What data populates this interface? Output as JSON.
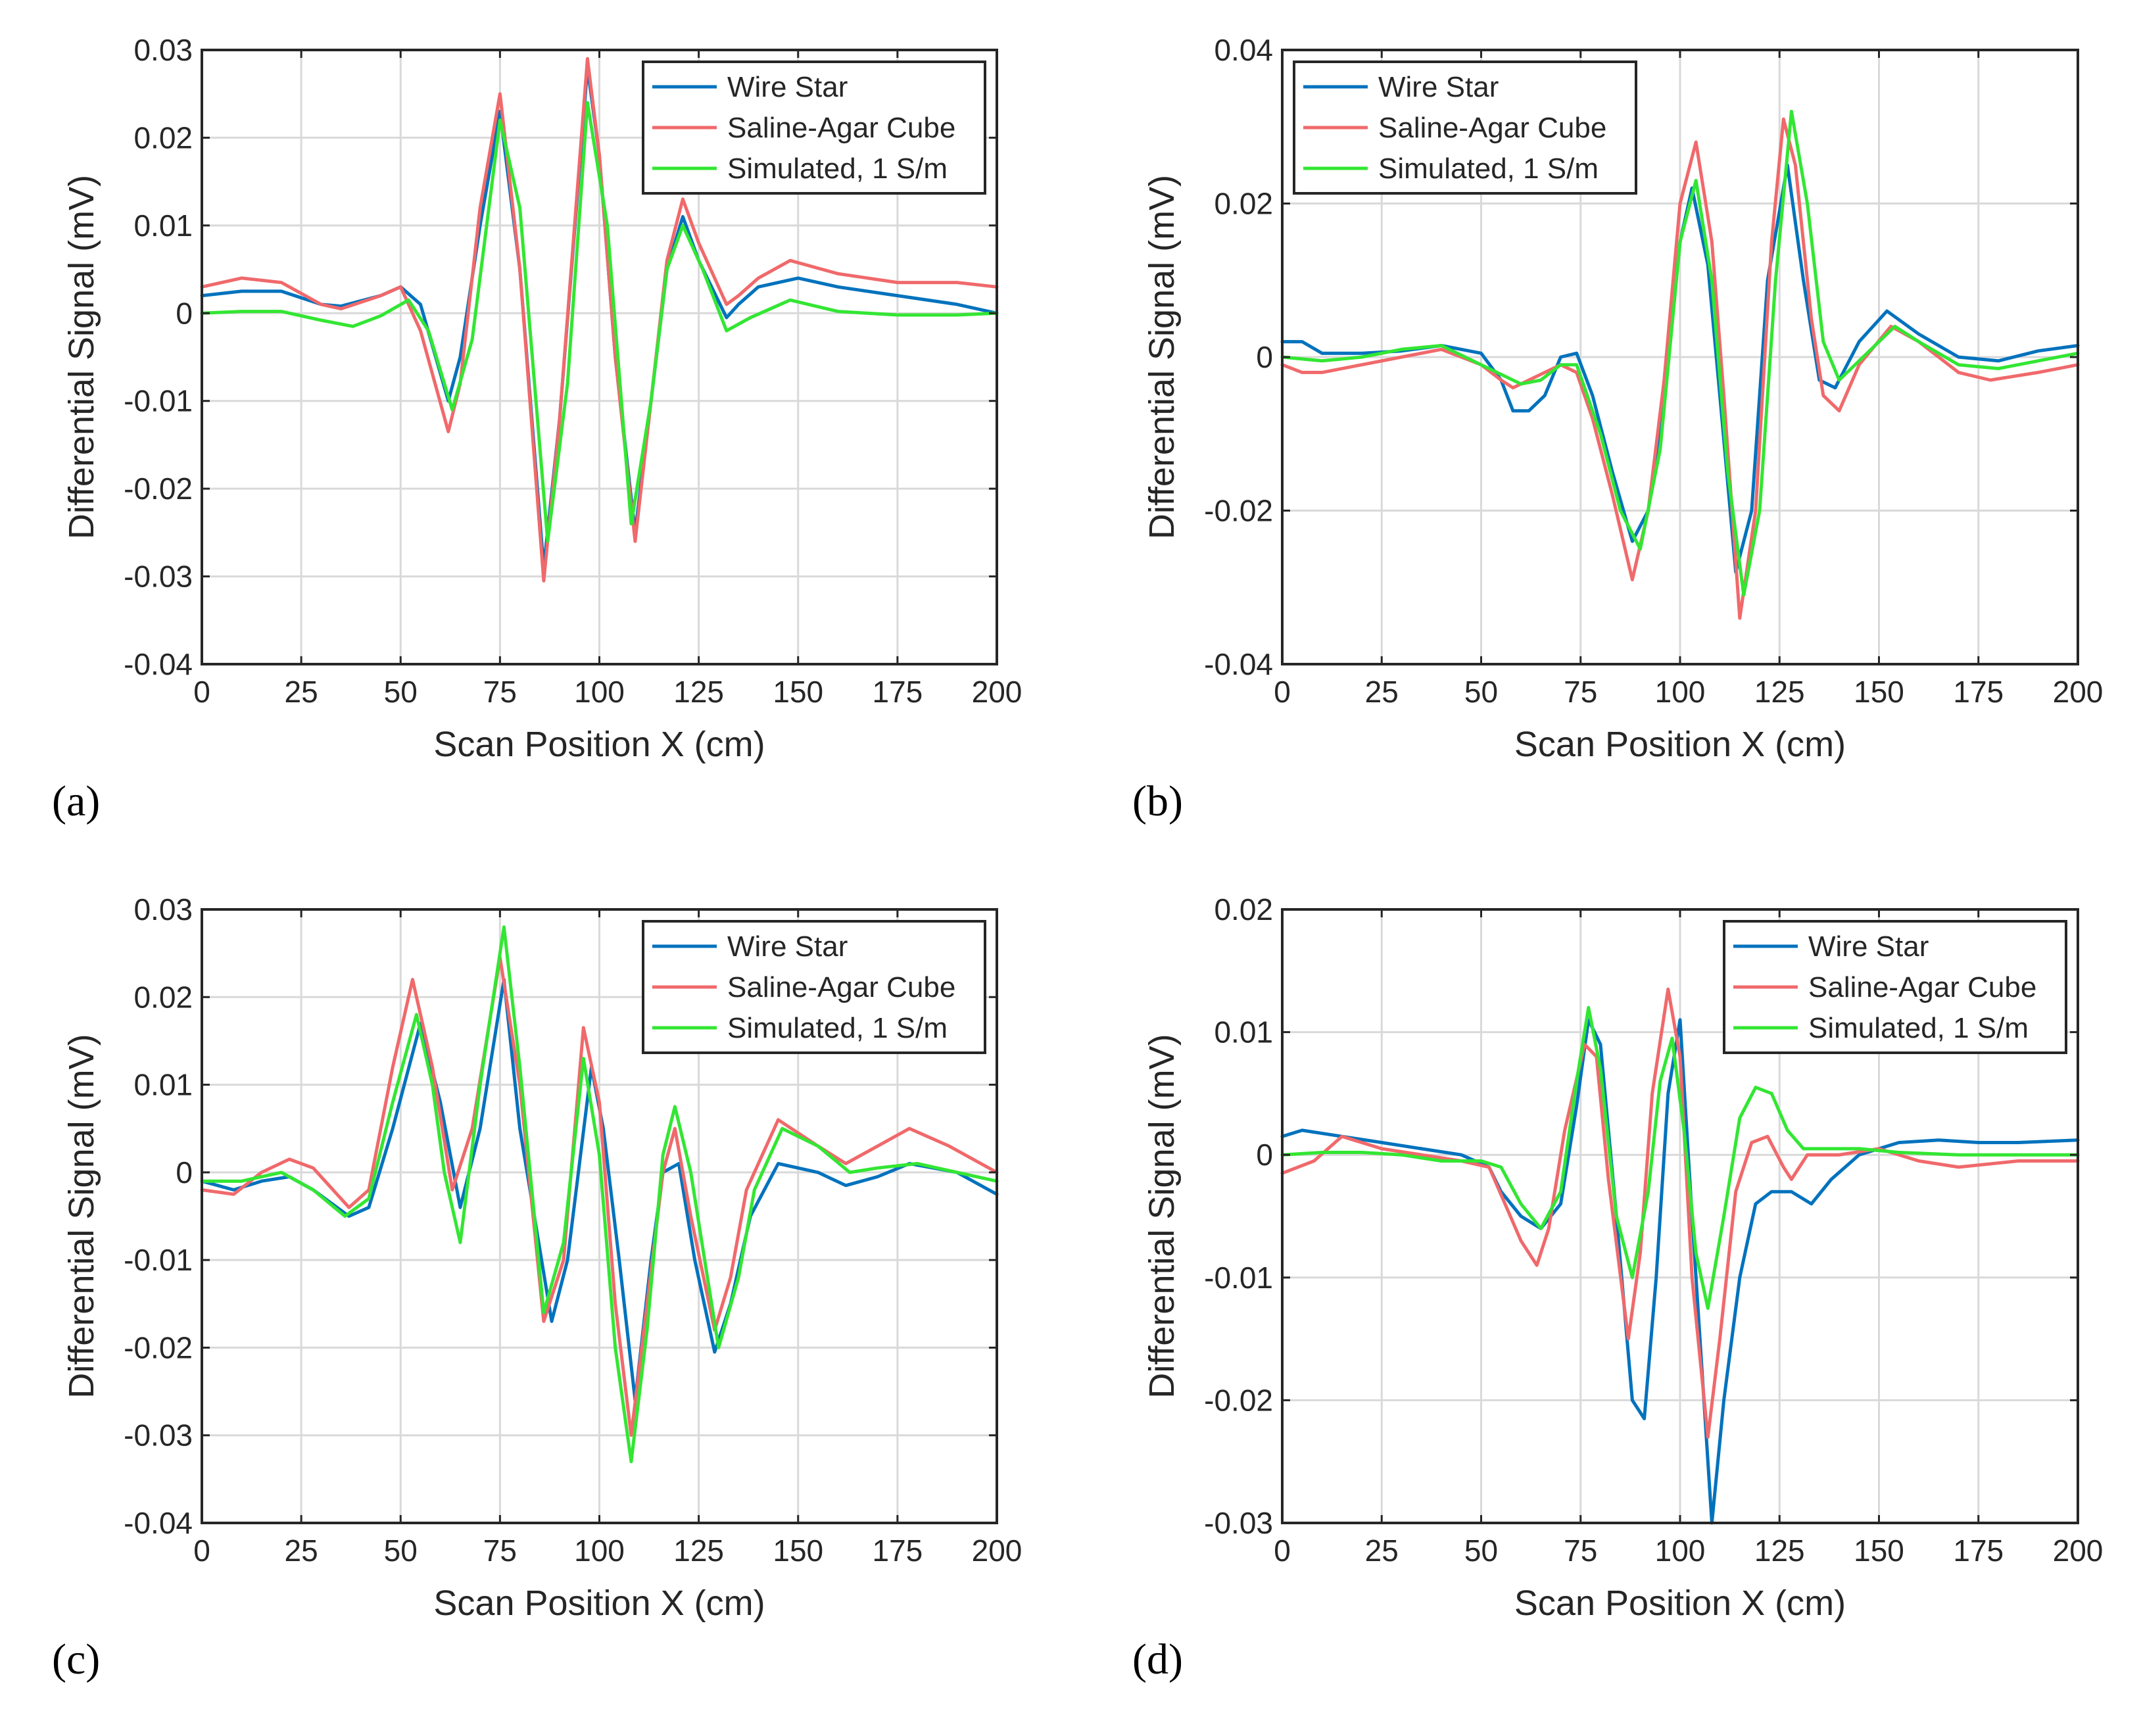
{
  "figure": {
    "legend_entries": [
      "Wire Star",
      "Saline-Agar Cube",
      "Simulated, 1 S/m"
    ],
    "series_colors": [
      "#0072BD",
      "#F0696B",
      "#33E633"
    ]
  },
  "chart_data": [
    {
      "type": "line",
      "panel": "(a)",
      "xlabel": "Scan Position X (cm)",
      "ylabel": "Differential Signal (mV)",
      "xlim": [
        0,
        200
      ],
      "ylim": [
        -0.04,
        0.03
      ],
      "xticks": [
        0,
        25,
        50,
        75,
        100,
        125,
        150,
        175,
        200
      ],
      "yticks": [
        -0.04,
        -0.03,
        -0.02,
        -0.01,
        0,
        0.01,
        0.02,
        0.03
      ],
      "xtick_labels": [
        "0",
        "25",
        "50",
        "75",
        "100",
        "125",
        "150",
        "175",
        "200"
      ],
      "ytick_labels": [
        "-0.04",
        "-0.03",
        "-0.02",
        "-0.01",
        "0",
        "0.01",
        "0.02",
        "0.03"
      ],
      "grid": true,
      "legend": "top-right",
      "series": [
        {
          "name": "Wire Star",
          "color": "#0072BD",
          "x": [
            0,
            10,
            20,
            30,
            35,
            45,
            50,
            55,
            62,
            65,
            70,
            75,
            80,
            86,
            90,
            97,
            100,
            104,
            109,
            113,
            117,
            121,
            125,
            132,
            135,
            140,
            150,
            160,
            175,
            190,
            200
          ],
          "y": [
            0.002,
            0.0025,
            0.0025,
            0.001,
            0.0008,
            0.002,
            0.003,
            0.001,
            -0.01,
            -0.005,
            0.01,
            0.023,
            0.005,
            -0.029,
            -0.012,
            0.028,
            0.018,
            -0.005,
            -0.025,
            -0.01,
            0.005,
            0.011,
            0.006,
            -0.0005,
            0.001,
            0.003,
            0.004,
            0.003,
            0.002,
            0.001,
            0
          ]
        },
        {
          "name": "Saline-Agar Cube",
          "color": "#F0696B",
          "x": [
            0,
            10,
            20,
            30,
            35,
            45,
            50,
            55,
            62,
            65,
            70,
            75,
            80,
            86,
            90,
            97,
            100,
            104,
            109,
            113,
            117,
            121,
            125,
            132,
            135,
            140,
            148,
            160,
            175,
            190,
            200
          ],
          "y": [
            0.003,
            0.004,
            0.0035,
            0.001,
            0.0005,
            0.002,
            0.003,
            -0.002,
            -0.0135,
            -0.008,
            0.012,
            0.025,
            0.005,
            -0.0305,
            -0.012,
            0.029,
            0.018,
            -0.005,
            -0.026,
            -0.01,
            0.006,
            0.013,
            0.008,
            0.001,
            0.002,
            0.004,
            0.006,
            0.0045,
            0.0035,
            0.0035,
            0.003
          ]
        },
        {
          "name": "Simulated, 1 S/m",
          "color": "#33E633",
          "x": [
            0,
            10,
            20,
            30,
            38,
            45,
            52,
            57,
            63,
            68,
            75,
            80,
            87,
            92,
            97,
            102,
            108,
            113,
            117,
            121,
            126,
            132,
            138,
            148,
            160,
            175,
            190,
            200
          ],
          "y": [
            0,
            0.0002,
            0.0002,
            -0.0008,
            -0.0015,
            -0.0003,
            0.0015,
            -0.002,
            -0.011,
            -0.003,
            0.022,
            0.012,
            -0.026,
            -0.008,
            0.024,
            0.01,
            -0.024,
            -0.01,
            0.005,
            0.01,
            0.005,
            -0.002,
            -0.0005,
            0.0015,
            0.0002,
            -0.0002,
            -0.0002,
            0
          ]
        }
      ]
    },
    {
      "type": "line",
      "panel": "(b)",
      "xlabel": "Scan Position X (cm)",
      "ylabel": "Differential Signal (mV)",
      "xlim": [
        0,
        200
      ],
      "ylim": [
        -0.04,
        0.04
      ],
      "xticks": [
        0,
        25,
        50,
        75,
        100,
        125,
        150,
        175,
        200
      ],
      "yticks": [
        -0.04,
        -0.02,
        0,
        0.02,
        0.04
      ],
      "xtick_labels": [
        "0",
        "25",
        "50",
        "75",
        "100",
        "125",
        "150",
        "175",
        "200"
      ],
      "ytick_labels": [
        "-0.04",
        "-0.02",
        "0",
        "0.02",
        "0.04"
      ],
      "grid": true,
      "legend": "top-left",
      "series": [
        {
          "name": "Wire Star",
          "color": "#0072BD",
          "x": [
            0,
            5,
            10,
            20,
            30,
            40,
            50,
            55,
            58,
            62,
            66,
            70,
            74,
            78,
            83,
            88,
            92,
            96,
            100,
            103,
            107,
            110,
            114,
            118,
            122,
            127,
            131,
            135,
            139,
            145,
            152,
            160,
            170,
            180,
            190,
            200
          ],
          "y": [
            0.002,
            0.002,
            0.0005,
            0.0005,
            0.0008,
            0.0015,
            0.0005,
            -0.003,
            -0.007,
            -0.007,
            -0.005,
            0,
            0.0005,
            -0.005,
            -0.015,
            -0.024,
            -0.02,
            -0.005,
            0.015,
            0.022,
            0.012,
            -0.005,
            -0.028,
            -0.02,
            0.01,
            0.025,
            0.01,
            -0.003,
            -0.004,
            0.002,
            0.006,
            0.003,
            0,
            -0.0005,
            0.0008,
            0.0015
          ]
        },
        {
          "name": "Saline-Agar Cube",
          "color": "#F0696B",
          "x": [
            0,
            5,
            10,
            20,
            30,
            40,
            50,
            55,
            58,
            62,
            66,
            70,
            74,
            78,
            83,
            88,
            92,
            96,
            100,
            104,
            108,
            111,
            115,
            119,
            123,
            126,
            129,
            133,
            136,
            140,
            145,
            153,
            160,
            170,
            178,
            190,
            200
          ],
          "y": [
            -0.001,
            -0.002,
            -0.002,
            -0.001,
            0,
            0.001,
            -0.001,
            -0.003,
            -0.004,
            -0.003,
            -0.002,
            -0.001,
            -0.002,
            -0.008,
            -0.018,
            -0.029,
            -0.02,
            -0.003,
            0.02,
            0.028,
            0.015,
            -0.005,
            -0.034,
            -0.02,
            0.015,
            0.031,
            0.025,
            0.005,
            -0.005,
            -0.007,
            -0.001,
            0.004,
            0.002,
            -0.002,
            -0.003,
            -0.002,
            -0.001
          ]
        },
        {
          "name": "Simulated, 1 S/m",
          "color": "#33E633",
          "x": [
            0,
            10,
            20,
            30,
            40,
            50,
            60,
            65,
            70,
            74,
            80,
            85,
            90,
            95,
            100,
            104,
            108,
            112,
            116,
            120,
            124,
            128,
            132,
            136,
            140,
            146,
            154,
            160,
            170,
            180,
            190,
            200
          ],
          "y": [
            0,
            -0.0005,
            0,
            0.001,
            0.0015,
            -0.001,
            -0.0035,
            -0.003,
            -0.001,
            -0.001,
            -0.01,
            -0.02,
            -0.025,
            -0.012,
            0.015,
            0.023,
            0.01,
            -0.015,
            -0.031,
            -0.02,
            0.01,
            0.032,
            0.02,
            0.002,
            -0.003,
            0,
            0.004,
            0.002,
            -0.001,
            -0.0015,
            -0.0005,
            0.0005
          ]
        }
      ]
    },
    {
      "type": "line",
      "panel": "(c)",
      "xlabel": "Scan Position X (cm)",
      "ylabel": "Differential Signal (mV)",
      "xlim": [
        0,
        200
      ],
      "ylim": [
        -0.04,
        0.03
      ],
      "xticks": [
        0,
        25,
        50,
        75,
        100,
        125,
        150,
        175,
        200
      ],
      "yticks": [
        -0.04,
        -0.03,
        -0.02,
        -0.01,
        0,
        0.01,
        0.02,
        0.03
      ],
      "xtick_labels": [
        "0",
        "25",
        "50",
        "75",
        "100",
        "125",
        "150",
        "175",
        "200"
      ],
      "ytick_labels": [
        "-0.04",
        "-0.03",
        "-0.02",
        "-0.01",
        "0",
        "0.01",
        "0.02",
        "0.03"
      ],
      "grid": true,
      "legend": "top-right",
      "series": [
        {
          "name": "Wire Star",
          "color": "#0072BD",
          "x": [
            0,
            8,
            15,
            22,
            28,
            37,
            42,
            48,
            55,
            60,
            65,
            70,
            76,
            80,
            88,
            92,
            98,
            101,
            105,
            109,
            113,
            116,
            120,
            124,
            129,
            133,
            138,
            145,
            155,
            162,
            170,
            178,
            190,
            200
          ],
          "y": [
            -0.001,
            -0.002,
            -0.001,
            -0.0005,
            -0.002,
            -0.005,
            -0.004,
            0.005,
            0.017,
            0.008,
            -0.004,
            0.005,
            0.022,
            0.005,
            -0.017,
            -0.01,
            0.012,
            0.005,
            -0.01,
            -0.026,
            -0.01,
            0,
            0.001,
            -0.01,
            -0.0205,
            -0.015,
            -0.005,
            0.001,
            0,
            -0.0015,
            -0.0005,
            0.001,
            0,
            -0.0025
          ]
        },
        {
          "name": "Saline-Agar Cube",
          "color": "#F0696B",
          "x": [
            0,
            8,
            15,
            22,
            28,
            37,
            42,
            48,
            53,
            58,
            63,
            68,
            75,
            80,
            86,
            91,
            96,
            100,
            104,
            108,
            112,
            116,
            119,
            123,
            129,
            133,
            137,
            145,
            155,
            162,
            170,
            178,
            188,
            200
          ],
          "y": [
            -0.002,
            -0.0025,
            0,
            0.0015,
            0.0005,
            -0.004,
            -0.002,
            0.012,
            0.022,
            0.012,
            -0.002,
            0.005,
            0.0245,
            0.01,
            -0.017,
            -0.01,
            0.0165,
            0.008,
            -0.015,
            -0.03,
            -0.015,
            0,
            0.005,
            -0.005,
            -0.018,
            -0.012,
            -0.002,
            0.006,
            0.003,
            0.001,
            0.003,
            0.005,
            0.003,
            0
          ]
        },
        {
          "name": "Simulated, 1 S/m",
          "color": "#33E633",
          "x": [
            0,
            10,
            20,
            28,
            36,
            42,
            48,
            54,
            58,
            61,
            65,
            70,
            76,
            80,
            86,
            91,
            96,
            100,
            104,
            108,
            112,
            116,
            119,
            123,
            130,
            135,
            139,
            146,
            155,
            163,
            170,
            180,
            190,
            200
          ],
          "y": [
            -0.001,
            -0.001,
            0,
            -0.002,
            -0.005,
            -0.003,
            0.008,
            0.018,
            0.01,
            0,
            -0.008,
            0.01,
            0.028,
            0.012,
            -0.016,
            -0.008,
            0.013,
            0.002,
            -0.02,
            -0.033,
            -0.018,
            0.002,
            0.0075,
            0,
            -0.02,
            -0.012,
            -0.002,
            0.005,
            0.003,
            0,
            0.0005,
            0.001,
            0,
            -0.001
          ]
        }
      ]
    },
    {
      "type": "line",
      "panel": "(d)",
      "xlabel": "Scan Position X (cm)",
      "ylabel": "Differential Signal (mV)",
      "xlim": [
        0,
        200
      ],
      "ylim": [
        -0.03,
        0.02
      ],
      "xticks": [
        0,
        25,
        50,
        75,
        100,
        125,
        150,
        175,
        200
      ],
      "yticks": [
        -0.03,
        -0.02,
        -0.01,
        0,
        0.01,
        0.02
      ],
      "xtick_labels": [
        "0",
        "25",
        "50",
        "75",
        "100",
        "125",
        "150",
        "175",
        "200"
      ],
      "ytick_labels": [
        "-0.03",
        "-0.02",
        "-0.01",
        "0",
        "0.01",
        "0.02"
      ],
      "grid": true,
      "legend": "top-right",
      "series": [
        {
          "name": "Wire Star",
          "color": "#0072BD",
          "x": [
            0,
            5,
            15,
            25,
            35,
            45,
            52,
            55,
            60,
            65,
            70,
            74,
            77,
            80,
            84,
            88,
            91,
            94,
            97,
            100,
            103,
            106,
            108,
            111,
            115,
            119,
            123,
            128,
            133,
            138,
            145,
            155,
            165,
            175,
            185,
            200
          ],
          "y": [
            0.0015,
            0.002,
            0.0015,
            0.001,
            0.0005,
            0,
            -0.001,
            -0.003,
            -0.005,
            -0.006,
            -0.004,
            0.004,
            0.011,
            0.009,
            -0.005,
            -0.02,
            -0.0215,
            -0.01,
            0.005,
            0.011,
            -0.005,
            -0.02,
            -0.03,
            -0.02,
            -0.01,
            -0.004,
            -0.003,
            -0.003,
            -0.004,
            -0.002,
            0,
            0.001,
            0.0012,
            0.001,
            0.001,
            0.0012
          ]
        },
        {
          "name": "Saline-Agar Cube",
          "color": "#F0696B",
          "x": [
            0,
            8,
            15,
            25,
            35,
            45,
            52,
            56,
            60,
            64,
            67,
            71,
            76,
            79,
            82,
            87,
            90,
            93,
            97,
            100,
            103,
            107,
            110,
            114,
            118,
            122,
            126,
            128,
            132,
            140,
            150,
            160,
            170,
            185,
            200
          ],
          "y": [
            -0.0015,
            -0.0005,
            0.0015,
            0.0005,
            0,
            -0.0005,
            -0.001,
            -0.004,
            -0.007,
            -0.009,
            -0.006,
            0.002,
            0.009,
            0.008,
            -0.002,
            -0.015,
            -0.008,
            0.005,
            0.0135,
            0.008,
            -0.01,
            -0.023,
            -0.015,
            -0.003,
            0.001,
            0.0015,
            -0.001,
            -0.002,
            0,
            0,
            0.0005,
            -0.0005,
            -0.001,
            -0.0005,
            -0.0005
          ]
        },
        {
          "name": "Simulated, 1 S/m",
          "color": "#33E633",
          "x": [
            0,
            10,
            20,
            30,
            40,
            50,
            55,
            60,
            65,
            70,
            74,
            77,
            80,
            84,
            88,
            92,
            95,
            98,
            101,
            104,
            107,
            111,
            115,
            119,
            123,
            127,
            131,
            136,
            145,
            155,
            170,
            185,
            200
          ],
          "y": [
            0,
            0.0002,
            0.0002,
            0,
            -0.0005,
            -0.0005,
            -0.001,
            -0.004,
            -0.006,
            -0.003,
            0.006,
            0.012,
            0.007,
            -0.005,
            -0.01,
            -0.003,
            0.006,
            0.0095,
            0.002,
            -0.008,
            -0.0125,
            -0.005,
            0.003,
            0.0055,
            0.005,
            0.002,
            0.0005,
            0.0005,
            0.0005,
            0.0002,
            0,
            0,
            0
          ]
        }
      ]
    }
  ]
}
